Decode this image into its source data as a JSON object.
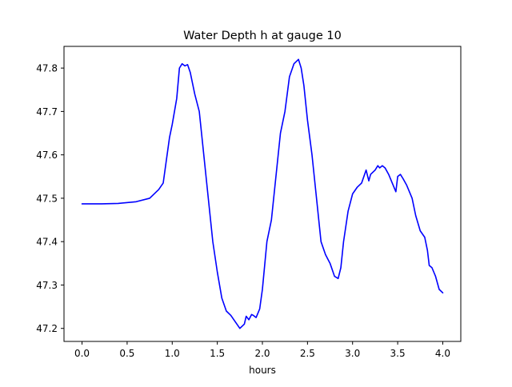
{
  "chart_data": {
    "type": "line",
    "title": "Water Depth h at gauge 10",
    "xlabel": "hours",
    "ylabel": "",
    "xlim": [
      -0.2,
      4.2
    ],
    "ylim": [
      47.17,
      47.85
    ],
    "xticks": [
      0.0,
      0.5,
      1.0,
      1.5,
      2.0,
      2.5,
      3.0,
      3.5,
      4.0
    ],
    "xtick_labels": [
      "0.0",
      "0.5",
      "1.0",
      "1.5",
      "2.0",
      "2.5",
      "3.0",
      "3.5",
      "4.0"
    ],
    "yticks": [
      47.2,
      47.3,
      47.4,
      47.5,
      47.6,
      47.7,
      47.8
    ],
    "ytick_labels": [
      "47.2",
      "47.3",
      "47.4",
      "47.5",
      "47.6",
      "47.7",
      "47.8"
    ],
    "grid": false,
    "legend": "none",
    "series": [
      {
        "color": "#0000ff",
        "x": [
          0.0,
          0.2,
          0.4,
          0.6,
          0.75,
          0.85,
          0.9,
          0.93,
          0.97,
          1.0,
          1.05,
          1.08,
          1.11,
          1.14,
          1.17,
          1.2,
          1.25,
          1.3,
          1.35,
          1.4,
          1.45,
          1.5,
          1.55,
          1.6,
          1.65,
          1.7,
          1.75,
          1.8,
          1.82,
          1.85,
          1.88,
          1.9,
          1.93,
          1.97,
          2.0,
          2.05,
          2.1,
          2.15,
          2.2,
          2.25,
          2.3,
          2.35,
          2.4,
          2.43,
          2.46,
          2.5,
          2.55,
          2.6,
          2.65,
          2.7,
          2.75,
          2.8,
          2.84,
          2.87,
          2.9,
          2.95,
          3.0,
          3.05,
          3.1,
          3.15,
          3.18,
          3.2,
          3.25,
          3.28,
          3.3,
          3.33,
          3.36,
          3.4,
          3.45,
          3.48,
          3.5,
          3.53,
          3.56,
          3.6,
          3.63,
          3.66,
          3.7,
          3.75,
          3.8,
          3.83,
          3.85,
          3.88,
          3.92,
          3.96,
          4.0
        ],
        "values": [
          47.487,
          47.487,
          47.488,
          47.492,
          47.5,
          47.52,
          47.535,
          47.58,
          47.64,
          47.67,
          47.73,
          47.8,
          47.81,
          47.805,
          47.808,
          47.79,
          47.74,
          47.7,
          47.6,
          47.5,
          47.4,
          47.33,
          47.27,
          47.24,
          47.23,
          47.215,
          47.2,
          47.21,
          47.228,
          47.22,
          47.232,
          47.23,
          47.225,
          47.245,
          47.29,
          47.4,
          47.45,
          47.55,
          47.65,
          47.7,
          47.78,
          47.81,
          47.82,
          47.8,
          47.76,
          47.68,
          47.6,
          47.5,
          47.4,
          47.37,
          47.35,
          47.32,
          47.315,
          47.34,
          47.4,
          47.47,
          47.51,
          47.525,
          47.535,
          47.565,
          47.54,
          47.555,
          47.565,
          47.575,
          47.57,
          47.575,
          47.57,
          47.555,
          47.53,
          47.515,
          47.55,
          47.555,
          47.545,
          47.53,
          47.515,
          47.5,
          47.46,
          47.425,
          47.41,
          47.38,
          47.345,
          47.34,
          47.32,
          47.29,
          47.282
        ]
      }
    ]
  }
}
